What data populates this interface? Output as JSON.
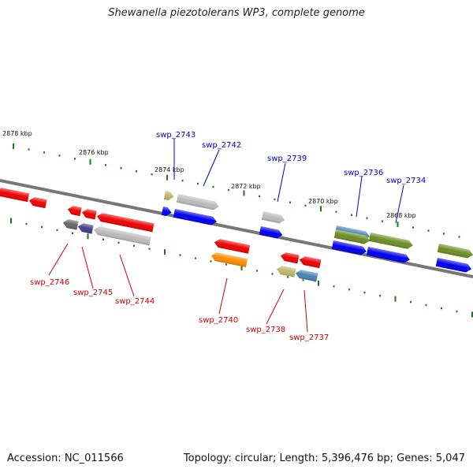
{
  "title": "Shewanella piezotolerans WP3, complete genome",
  "footer": {
    "accession": "Accession: NC_011566",
    "summary": "Topology: circular; Length: 5,396,476 bp; Genes: 5,047"
  },
  "scale_labels": [
    "2878 kbp",
    "2876 kbp",
    "2874 kbp",
    "2872 kbp",
    "2870 kbp",
    "2868 kbp"
  ],
  "gene_labels_forward": [
    "swp_2743",
    "swp_2742",
    "swp_2739",
    "swp_2736",
    "swp_2734"
  ],
  "gene_labels_reverse": [
    "swp_2746",
    "swp_2745",
    "swp_2744",
    "swp_2740",
    "swp_2738",
    "swp_2737"
  ],
  "colors": {
    "forward_label": "#0000cc",
    "reverse_label": "#cc0000",
    "tick": "#1a7a1a",
    "backbone": "#777777",
    "red": "#ee0000",
    "blue": "#0000ee",
    "gray": "#bbbbbb",
    "olive": "#6b8e23",
    "orange": "#ff8c00",
    "tan": "#bdb76b",
    "steel": "#4682b4",
    "dark_gray": "#666666",
    "slate": "#483d8b"
  }
}
